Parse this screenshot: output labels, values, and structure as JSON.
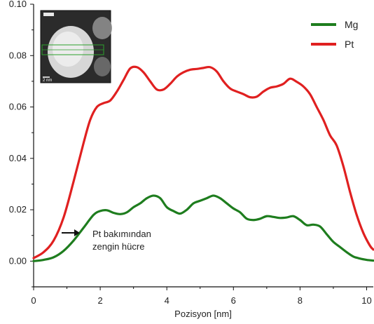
{
  "chart_data": {
    "type": "line",
    "title": "",
    "xlabel": "Pozisyon [nm]",
    "ylabel": "",
    "xlim": [
      0,
      10.2
    ],
    "ylim": [
      -0.01,
      0.1
    ],
    "xticks": [
      0,
      2,
      4,
      6,
      8,
      10
    ],
    "yticks": [
      0.0,
      0.02,
      0.04,
      0.06,
      0.08,
      0.1
    ],
    "xtick_labels": [
      "0",
      "2",
      "4",
      "6",
      "8",
      "10"
    ],
    "ytick_labels": [
      "0.00",
      "0.02",
      "0.04",
      "0.06",
      "0.08",
      "0.10"
    ],
    "legend": {
      "placement": "top-right",
      "entries": [
        "Mg",
        "Pt"
      ]
    },
    "grid": false,
    "series": [
      {
        "name": "Mg",
        "color": "#1e7d1e",
        "x": [
          0,
          0.3,
          0.6,
          0.9,
          1.2,
          1.5,
          1.8,
          2.0,
          2.2,
          2.4,
          2.6,
          2.8,
          3.0,
          3.2,
          3.4,
          3.6,
          3.8,
          4.0,
          4.2,
          4.4,
          4.6,
          4.8,
          5.0,
          5.2,
          5.4,
          5.6,
          5.8,
          6.0,
          6.2,
          6.4,
          6.6,
          6.8,
          7.0,
          7.2,
          7.4,
          7.6,
          7.8,
          8.0,
          8.2,
          8.4,
          8.6,
          8.8,
          9.0,
          9.2,
          9.4,
          9.6,
          9.8,
          10.0,
          10.2
        ],
        "values": [
          0.0,
          0.0005,
          0.0015,
          0.004,
          0.008,
          0.013,
          0.018,
          0.0195,
          0.0198,
          0.0188,
          0.0183,
          0.019,
          0.021,
          0.0225,
          0.0245,
          0.0255,
          0.0245,
          0.021,
          0.0195,
          0.0185,
          0.02,
          0.0225,
          0.0235,
          0.0245,
          0.0255,
          0.0245,
          0.0225,
          0.0205,
          0.019,
          0.0165,
          0.016,
          0.0165,
          0.0175,
          0.0172,
          0.0168,
          0.017,
          0.0175,
          0.016,
          0.014,
          0.0142,
          0.0135,
          0.0105,
          0.0075,
          0.0055,
          0.0035,
          0.0018,
          0.001,
          0.0005,
          0.0002
        ]
      },
      {
        "name": "Pt",
        "color": "#e02020",
        "x": [
          0,
          0.3,
          0.6,
          0.9,
          1.2,
          1.5,
          1.7,
          1.9,
          2.1,
          2.3,
          2.5,
          2.7,
          2.9,
          3.1,
          3.3,
          3.5,
          3.7,
          3.9,
          4.1,
          4.3,
          4.5,
          4.7,
          4.9,
          5.1,
          5.3,
          5.5,
          5.7,
          5.9,
          6.1,
          6.3,
          6.5,
          6.7,
          6.9,
          7.1,
          7.3,
          7.5,
          7.7,
          7.9,
          8.1,
          8.3,
          8.5,
          8.7,
          8.9,
          9.1,
          9.3,
          9.5,
          9.7,
          9.9,
          10.1,
          10.2
        ],
        "values": [
          0.0012,
          0.0035,
          0.008,
          0.017,
          0.031,
          0.046,
          0.055,
          0.06,
          0.0615,
          0.0625,
          0.066,
          0.0705,
          0.075,
          0.0755,
          0.0735,
          0.07,
          0.0668,
          0.0668,
          0.069,
          0.0718,
          0.0735,
          0.0745,
          0.0748,
          0.0752,
          0.0755,
          0.0738,
          0.07,
          0.0672,
          0.066,
          0.065,
          0.0638,
          0.064,
          0.066,
          0.0675,
          0.068,
          0.069,
          0.071,
          0.0698,
          0.068,
          0.065,
          0.06,
          0.055,
          0.049,
          0.045,
          0.037,
          0.027,
          0.018,
          0.011,
          0.006,
          0.0045
        ]
      }
    ],
    "annotations": [
      {
        "lines": [
          "Pt bakımından",
          "zengin hücre"
        ],
        "arrow_target": [
          1.35,
          0.011
        ]
      }
    ],
    "inset": {
      "description_label": "2 nm"
    }
  }
}
